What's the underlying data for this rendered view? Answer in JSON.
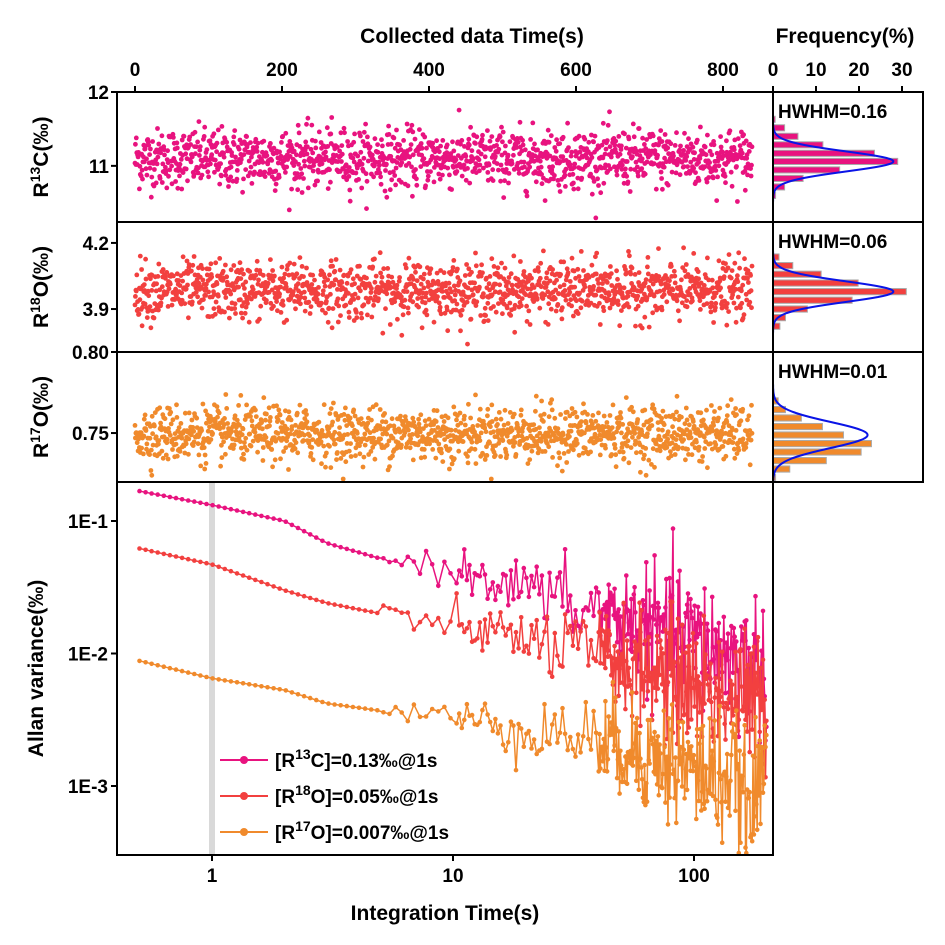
{
  "chart_data": [
    {
      "type": "scatter",
      "panel": "R13C",
      "top_xlabel": "Collected data Time(s)",
      "xlim": [
        -20,
        850
      ],
      "xticks": [
        "0",
        "200",
        "400",
        "600",
        "800"
      ],
      "ylabel": {
        "base": "R",
        "sup": "13",
        "rest": "C(‰)"
      },
      "ylim": [
        10.24,
        12
      ],
      "yticks": [
        "12",
        "11"
      ],
      "color": "#e8137f",
      "distribution": {
        "mean": 11.1,
        "sd": 0.2,
        "duration_s": 840
      }
    },
    {
      "type": "scatter",
      "panel": "R18O",
      "ylabel": {
        "base": "R",
        "sup": "18",
        "rest": "O(‰)"
      },
      "ylim": [
        3.705,
        4.295
      ],
      "yticks": [
        "4.2",
        "3.9"
      ],
      "color": "#f2403f",
      "distribution": {
        "mean": 3.985,
        "sd": 0.065,
        "duration_s": 840
      }
    },
    {
      "type": "scatter",
      "panel": "R17O",
      "ylabel": {
        "base": "R",
        "sup": "17",
        "rest": "O(‰)"
      },
      "ylim": [
        0.7198,
        0.8
      ],
      "yticks": [
        "0.80",
        "0.75"
      ],
      "color": "#f08a2c",
      "distribution": {
        "mean": 0.7495,
        "sd": 0.0085,
        "duration_s": 840
      }
    },
    {
      "type": "bar",
      "orientation": "horizontal",
      "title": "Frequency(%)",
      "xlim": [
        0,
        35
      ],
      "xticks": [
        "0",
        "10",
        "20",
        "30"
      ],
      "fit_color": "#0a14e6",
      "histograms": [
        {
          "panel": "R13C",
          "annotation": "HWHM=0.16",
          "color": "#e8137f",
          "bin_centers": [
            11.63,
            11.515,
            11.4,
            11.285,
            11.17,
            11.06,
            10.945,
            10.83,
            10.715,
            10.6
          ],
          "frequency": [
            0.5,
            2.7,
            5.8,
            11.6,
            23.6,
            29,
            15.5,
            7,
            2.7,
            0.6
          ],
          "fit": {
            "center": 11.06,
            "hwhm": 0.16,
            "peak": 28
          }
        },
        {
          "panel": "R18O",
          "annotation": "HWHM=0.06",
          "color": "#f2403f",
          "bin_centers": [
            4.136,
            4.097,
            4.058,
            4.018,
            3.979,
            3.94,
            3.9,
            3.861,
            3.822
          ],
          "frequency": [
            1.4,
            4.6,
            11.2,
            19.8,
            31,
            18.4,
            8,
            2.9,
            1.6
          ],
          "fit": {
            "center": 3.979,
            "hwhm": 0.055,
            "peak": 28
          }
        },
        {
          "panel": "R17O",
          "annotation": "HWHM=0.01",
          "color": "#f08a2c",
          "bin_centers": [
            0.7698,
            0.7645,
            0.7593,
            0.754,
            0.7488,
            0.7435,
            0.7383,
            0.733,
            0.7278,
            0.7225
          ],
          "frequency": [
            1.2,
            2.9,
            6.6,
            11.5,
            16.4,
            22.9,
            20.5,
            12.4,
            3.9,
            0.6
          ],
          "fit": {
            "center": 0.7488,
            "hwhm": 0.0095,
            "peak": 22
          }
        }
      ]
    },
    {
      "type": "line",
      "xlabel": "Integration Time(s)",
      "ylabel": "Allan variance(‰)",
      "xscale": "log",
      "yscale": "log",
      "xlim": [
        0.403,
        213
      ],
      "ylim": [
        0.0003,
        0.197
      ],
      "xticks": [
        {
          "v": 1,
          "label": "1"
        },
        {
          "v": 10,
          "label": "10"
        },
        {
          "v": 100,
          "label": "100"
        }
      ],
      "yticks": [
        {
          "v": 0.1,
          "label": "1E-1"
        },
        {
          "v": 0.01,
          "label": "1E-2"
        },
        {
          "v": 0.001,
          "label": "1E-3"
        }
      ],
      "highlight_x": 1,
      "legend_position": "bottom-left",
      "series": [
        {
          "name": {
            "pre": "[R",
            "sup": "13",
            "post": "C]=0.13‰@1s"
          },
          "color": "#e8137f",
          "tau": [
            0.5,
            1,
            2,
            3,
            5,
            10,
            20,
            30,
            50,
            100,
            150,
            200
          ],
          "values": [
            0.168,
            0.132,
            0.1,
            0.068,
            0.052,
            0.044,
            0.031,
            0.024,
            0.018,
            0.0126,
            0.009,
            0.0075
          ]
        },
        {
          "name": {
            "pre": "[R",
            "sup": "18",
            "post": "O]=0.05‰@1s"
          },
          "color": "#f2403f",
          "tau": [
            0.5,
            1,
            2,
            3,
            5,
            10,
            20,
            30,
            50,
            100,
            150,
            200
          ],
          "values": [
            0.062,
            0.047,
            0.03,
            0.024,
            0.02,
            0.0164,
            0.013,
            0.011,
            0.0085,
            0.0058,
            0.0045,
            0.0041
          ]
        },
        {
          "name": {
            "pre": "[R",
            "sup": "17",
            "post": "O]=0.007‰@1s"
          },
          "color": "#f08a2c",
          "tau": [
            0.5,
            1,
            2,
            3,
            5,
            10,
            20,
            30,
            50,
            100,
            150,
            170,
            200
          ],
          "values": [
            0.0088,
            0.0065,
            0.0053,
            0.0042,
            0.0037,
            0.0033,
            0.0027,
            0.0024,
            0.002,
            0.0013,
            0.0011,
            0.00055,
            0.0016
          ]
        }
      ]
    }
  ]
}
